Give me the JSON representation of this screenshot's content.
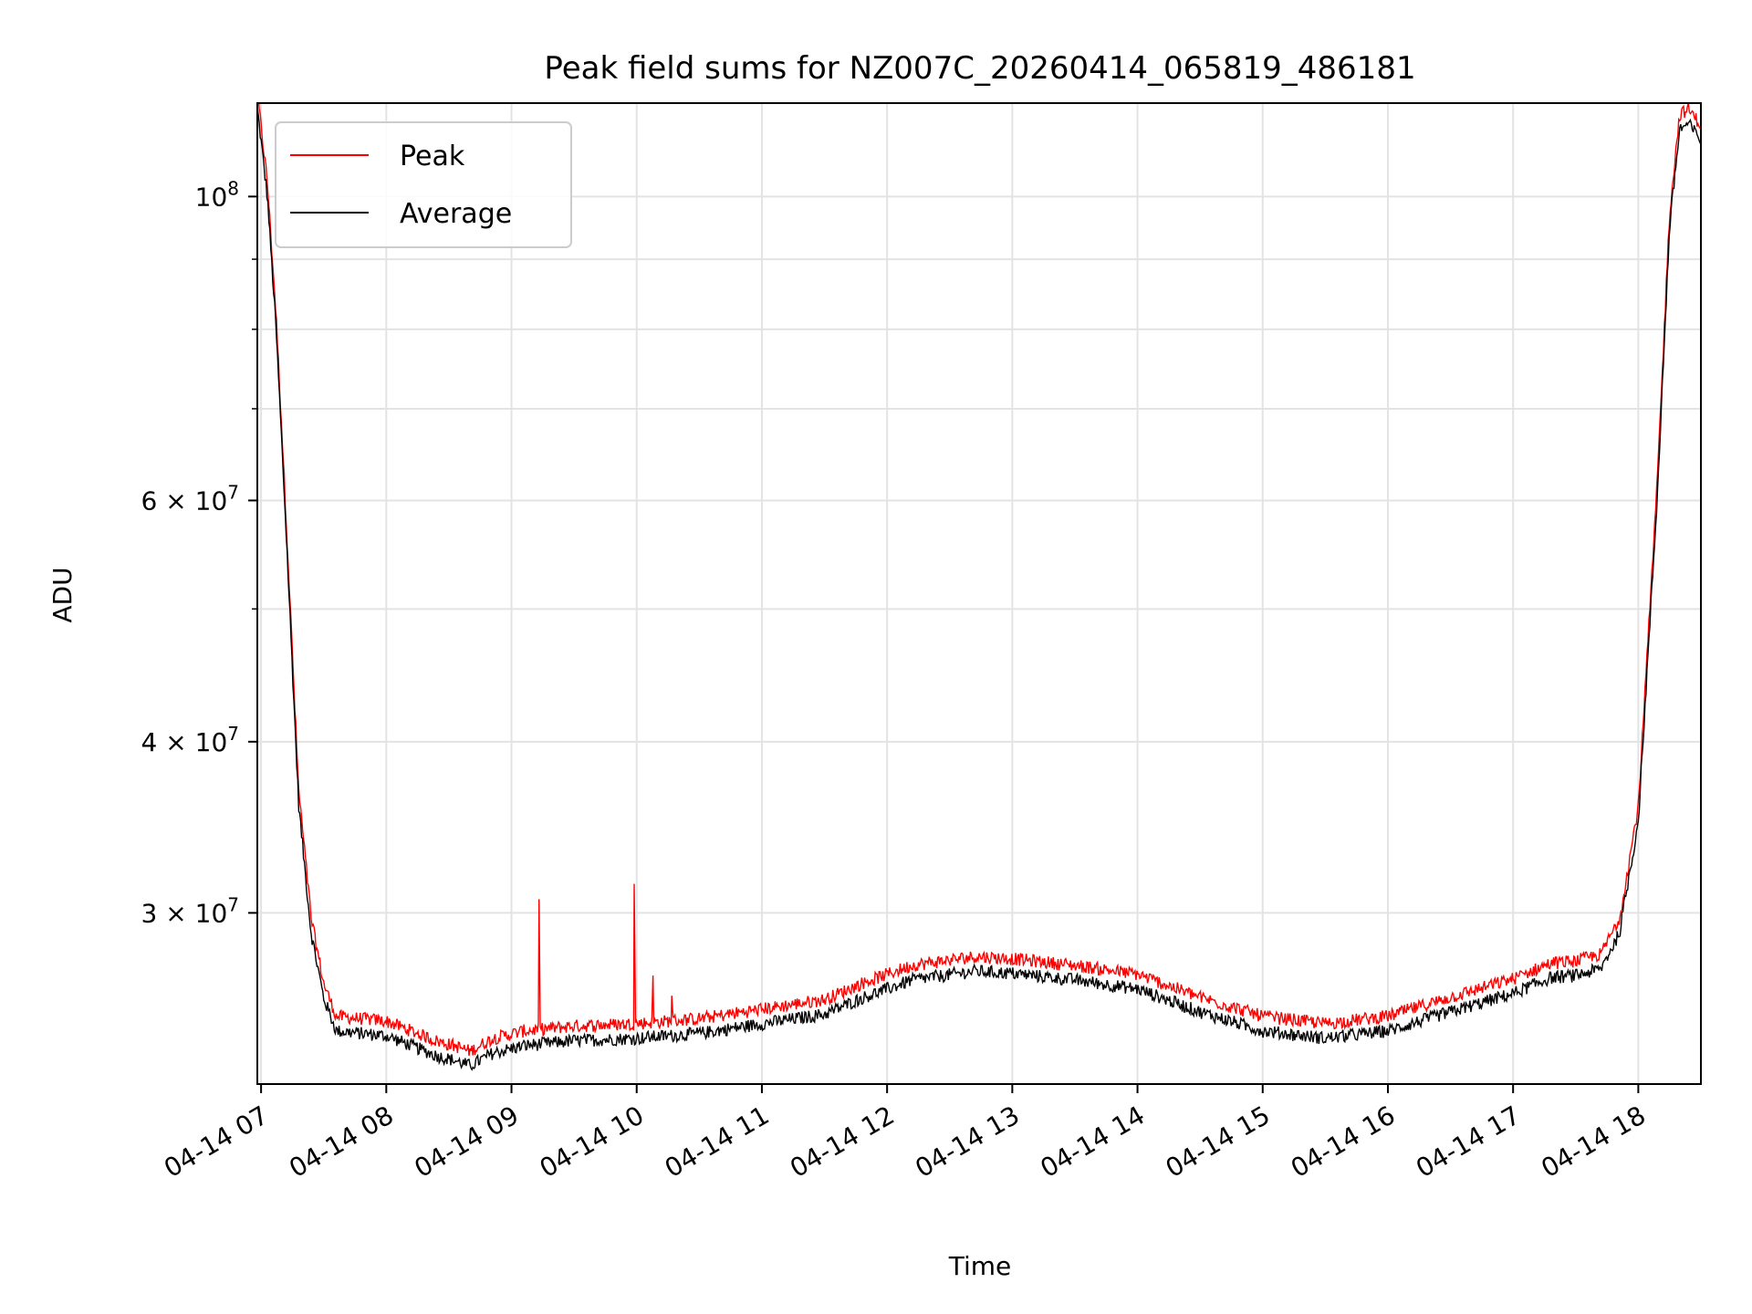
{
  "chart_data": {
    "type": "line",
    "title": "Peak field sums for NZ007C_20260414_065819_486181",
    "xlabel": "Time",
    "ylabel": "ADU",
    "yscale": "log",
    "xlim_hours": [
      6.97,
      18.5
    ],
    "ylim": [
      22500000,
      117000000
    ],
    "grid": true,
    "legend_position": "upper-left",
    "x_ticks": [
      {
        "hour": 7,
        "label": "04-14 07"
      },
      {
        "hour": 8,
        "label": "04-14 08"
      },
      {
        "hour": 9,
        "label": "04-14 09"
      },
      {
        "hour": 10,
        "label": "04-14 10"
      },
      {
        "hour": 11,
        "label": "04-14 11"
      },
      {
        "hour": 12,
        "label": "04-14 12"
      },
      {
        "hour": 13,
        "label": "04-14 13"
      },
      {
        "hour": 14,
        "label": "04-14 14"
      },
      {
        "hour": 15,
        "label": "04-14 15"
      },
      {
        "hour": 16,
        "label": "04-14 16"
      },
      {
        "hour": 17,
        "label": "04-14 17"
      },
      {
        "hour": 18,
        "label": "04-14 18"
      }
    ],
    "y_major_ticks": [
      {
        "value": 100000000,
        "mantissa": "10",
        "exponent": "8"
      },
      {
        "value": 60000000,
        "mantissa": "6 × 10",
        "exponent": "7"
      },
      {
        "value": 40000000,
        "mantissa": "4 × 10",
        "exponent": "7"
      },
      {
        "value": 30000000,
        "mantissa": "3 × 10",
        "exponent": "7"
      }
    ],
    "y_minor_ticks": [
      50000000,
      70000000,
      80000000,
      90000000
    ],
    "series": [
      {
        "name": "Peak",
        "color": "#ff0000"
      },
      {
        "name": "Average",
        "color": "#000000"
      }
    ],
    "average_profile": [
      [
        6.97,
        116000000
      ],
      [
        7.05,
        100000000
      ],
      [
        7.12,
        80000000
      ],
      [
        7.2,
        57000000
      ],
      [
        7.3,
        36000000
      ],
      [
        7.4,
        29000000
      ],
      [
        7.5,
        26000000
      ],
      [
        7.6,
        24600000
      ],
      [
        7.8,
        24500000
      ],
      [
        8.0,
        24400000
      ],
      [
        8.2,
        24000000
      ],
      [
        8.4,
        23600000
      ],
      [
        8.55,
        23400000
      ],
      [
        8.67,
        23200000
      ],
      [
        8.85,
        23700000
      ],
      [
        9.1,
        24000000
      ],
      [
        9.5,
        24200000
      ],
      [
        10.0,
        24300000
      ],
      [
        10.5,
        24500000
      ],
      [
        11.0,
        24900000
      ],
      [
        11.5,
        25300000
      ],
      [
        11.8,
        26000000
      ],
      [
        12.2,
        26800000
      ],
      [
        12.7,
        27200000
      ],
      [
        13.0,
        27100000
      ],
      [
        13.5,
        26800000
      ],
      [
        14.0,
        26400000
      ],
      [
        14.5,
        25400000
      ],
      [
        15.0,
        24600000
      ],
      [
        15.5,
        24300000
      ],
      [
        16.0,
        24600000
      ],
      [
        16.5,
        25400000
      ],
      [
        17.0,
        26200000
      ],
      [
        17.3,
        26900000
      ],
      [
        17.5,
        27000000
      ],
      [
        17.7,
        27300000
      ],
      [
        17.85,
        29000000
      ],
      [
        18.0,
        35000000
      ],
      [
        18.15,
        60000000
      ],
      [
        18.25,
        95000000
      ],
      [
        18.33,
        112000000
      ],
      [
        18.4,
        113000000
      ],
      [
        18.5,
        110000000
      ]
    ],
    "peak_offset_ratio": 1.025,
    "peak_spikes": [
      {
        "hour": 9.22,
        "value": 30700000
      },
      {
        "hour": 9.98,
        "value": 31500000
      },
      {
        "hour": 10.13,
        "value": 27000000
      },
      {
        "hour": 10.28,
        "value": 26100000
      }
    ]
  }
}
